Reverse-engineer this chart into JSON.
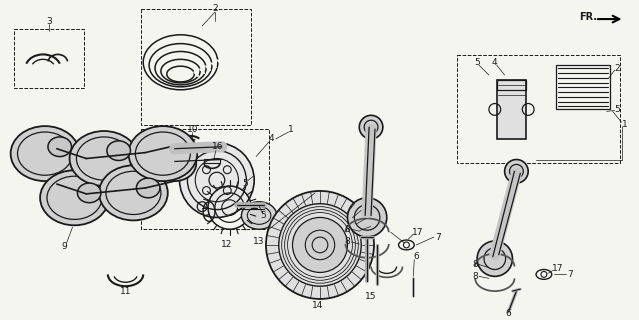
{
  "bg_color": "#f5f5f0",
  "line_color": "#1a1a1a",
  "fig_width": 6.39,
  "fig_height": 3.2,
  "dpi": 100
}
